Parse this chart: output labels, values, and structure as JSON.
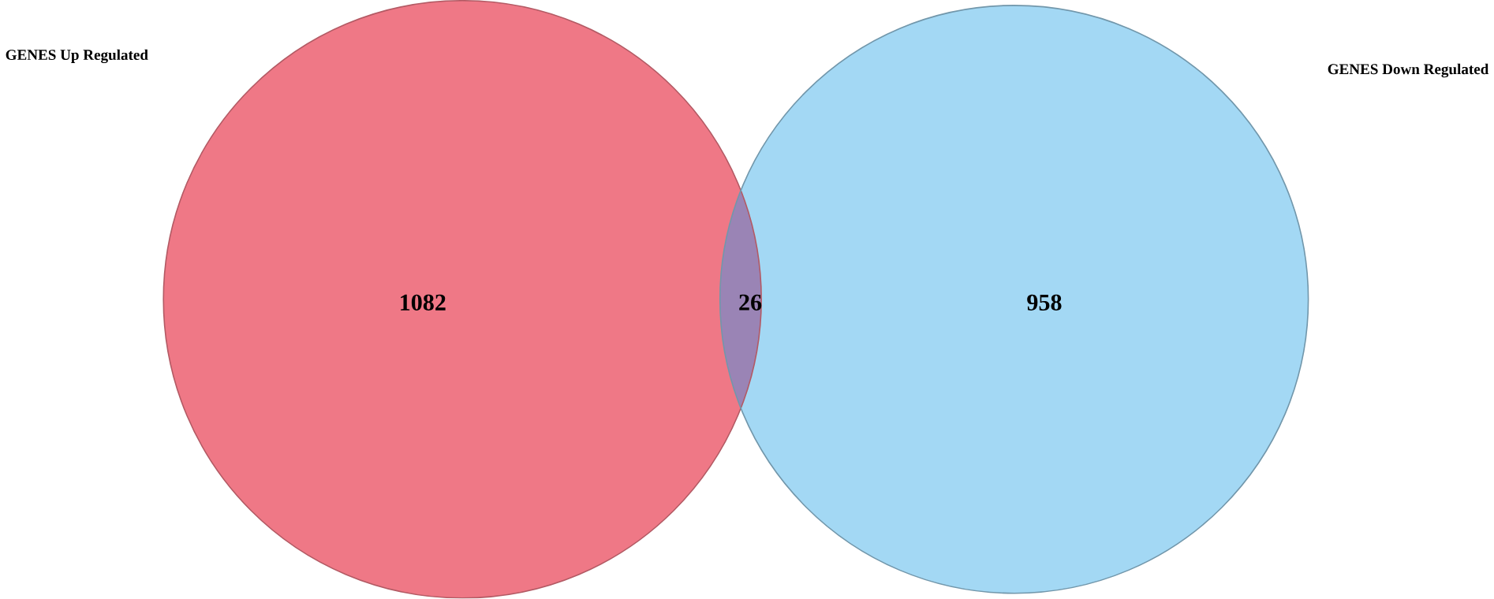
{
  "chart_data": {
    "type": "other",
    "categories": [
      "GENES Up Regulated",
      null,
      "GENES Down Regulated"
    ],
    "values": [
      1082,
      26,
      958
    ],
    "data_labels": true,
    "colors": [
      "#ef7886",
      "#9a84b5",
      "#a3d8f4"
    ]
  }
}
